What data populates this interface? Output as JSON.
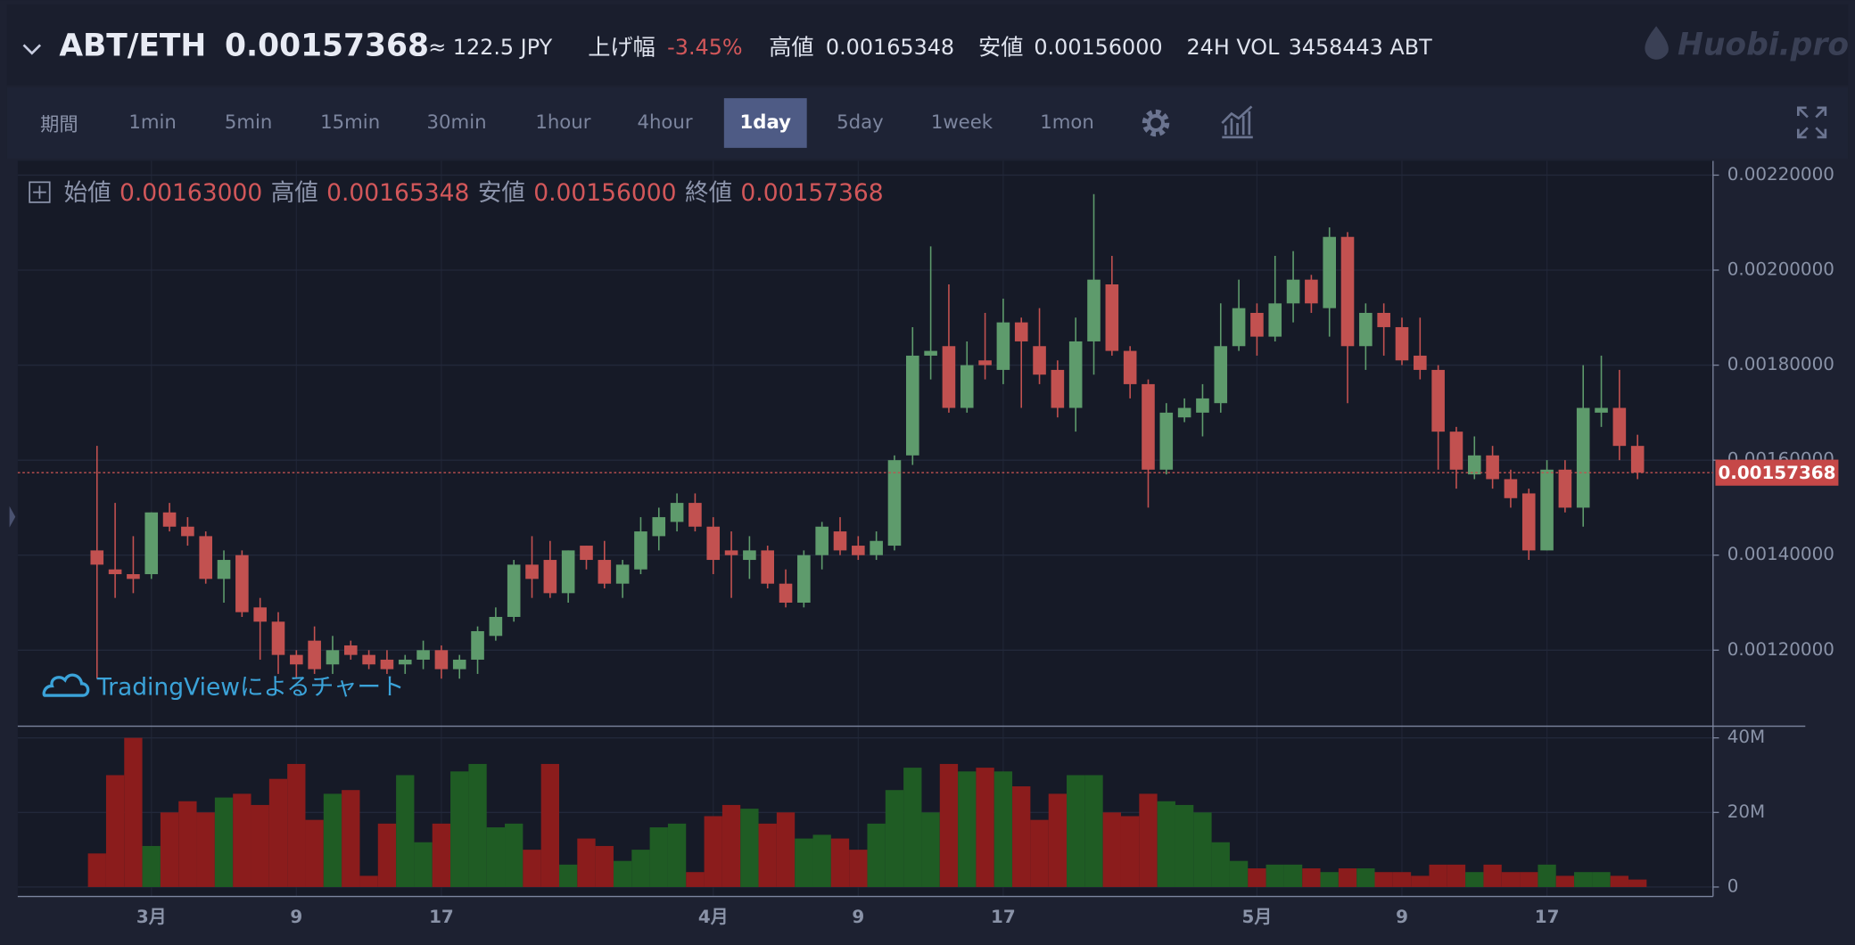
{
  "header": {
    "pair": "ABT/ETH",
    "price": "0.00157368",
    "jpy": "≈ 122.5 JPY",
    "change_label": "上げ幅",
    "change": "-3.45%",
    "high_label": "高値",
    "high": "0.00165348",
    "low_label": "安値",
    "low": "0.00156000",
    "vol_label": "24H VOL",
    "vol": "3458443 ABT",
    "logo": "Huobi.pro"
  },
  "toolbar": {
    "period_label": "期間",
    "intervals": [
      "1min",
      "5min",
      "15min",
      "30min",
      "1hour",
      "4hour",
      "1day",
      "5day",
      "1week",
      "1mon"
    ],
    "active": 6
  },
  "legend": {
    "open_label": "始値",
    "open": "0.00163000",
    "high_label": "高値",
    "high": "0.00165348",
    "low_label": "安値",
    "low": "0.00156000",
    "close_label": "終値",
    "close": "0.00157368"
  },
  "watermark": "TradingViewによるチャート",
  "chart_data": {
    "type": "candlestick",
    "categories": [
      null,
      null,
      null,
      "3月",
      null,
      null,
      null,
      null,
      null,
      null,
      null,
      "9",
      null,
      null,
      null,
      null,
      null,
      null,
      null,
      "17",
      null,
      null,
      null,
      null,
      null,
      null,
      null,
      null,
      null,
      null,
      null,
      null,
      null,
      null,
      "4月",
      null,
      null,
      null,
      null,
      null,
      null,
      null,
      "9",
      null,
      null,
      null,
      null,
      null,
      null,
      null,
      "17",
      null,
      null,
      null,
      null,
      null,
      null,
      null,
      null,
      null,
      null,
      null,
      null,
      null,
      "5月",
      null,
      null,
      null,
      null,
      null,
      null,
      null,
      "9",
      null,
      null,
      null,
      null,
      null,
      null,
      null,
      "17",
      null,
      null,
      null,
      null,
      null
    ],
    "open": [
      0.00141,
      0.00137,
      0.00136,
      0.00136,
      0.00149,
      0.00146,
      0.00144,
      0.00135,
      0.0014,
      0.00129,
      0.00126,
      0.00119,
      0.00122,
      0.00117,
      0.00121,
      0.00119,
      0.00118,
      0.00117,
      0.00118,
      0.0012,
      0.00116,
      0.00118,
      0.00123,
      0.00127,
      0.00138,
      0.00139,
      0.00132,
      0.00142,
      0.00139,
      0.00134,
      0.00137,
      0.00144,
      0.00147,
      0.00151,
      0.00146,
      0.00141,
      0.00139,
      0.00141,
      0.00134,
      0.0013,
      0.0014,
      0.00145,
      0.00142,
      0.0014,
      0.00142,
      0.00161,
      0.00182,
      0.00184,
      0.00171,
      0.00181,
      0.00179,
      0.00189,
      0.00184,
      0.00179,
      0.00171,
      0.00185,
      0.00197,
      0.00183,
      0.00176,
      0.00158,
      0.00169,
      0.0017,
      0.00172,
      0.00184,
      0.00191,
      0.00186,
      0.00193,
      0.00198,
      0.00192,
      0.00207,
      0.00184,
      0.00191,
      0.00188,
      0.00182,
      0.00179,
      0.00166,
      0.00157,
      0.00161,
      0.00156,
      0.00153,
      0.00141,
      0.00158,
      0.0015,
      0.0017,
      0.00171,
      0.00163
    ],
    "high": [
      0.00163,
      0.00151,
      0.00144,
      0.00149,
      0.00151,
      0.00148,
      0.00145,
      0.00141,
      0.00141,
      0.00131,
      0.00128,
      0.0012,
      0.00125,
      0.00123,
      0.00122,
      0.0012,
      0.0012,
      0.00119,
      0.00122,
      0.00121,
      0.00119,
      0.00125,
      0.00129,
      0.00139,
      0.00144,
      0.00143,
      0.00141,
      0.00142,
      0.00143,
      0.00139,
      0.00148,
      0.0015,
      0.00153,
      0.00153,
      0.00148,
      0.00145,
      0.00144,
      0.00142,
      0.00137,
      0.00141,
      0.00147,
      0.00148,
      0.00144,
      0.00145,
      0.00161,
      0.00188,
      0.00205,
      0.00197,
      0.00185,
      0.00191,
      0.00194,
      0.0019,
      0.00192,
      0.00181,
      0.0019,
      0.00216,
      0.00203,
      0.00184,
      0.00177,
      0.00172,
      0.00173,
      0.00176,
      0.00193,
      0.00198,
      0.00193,
      0.00203,
      0.00204,
      0.00199,
      0.00209,
      0.00208,
      0.00193,
      0.00193,
      0.0019,
      0.0019,
      0.0018,
      0.00167,
      0.00165,
      0.00163,
      0.00158,
      0.00154,
      0.0016,
      0.0016,
      0.0018,
      0.00182,
      0.00179,
      0.00165348
    ],
    "low": [
      0.00114,
      0.00131,
      0.00132,
      0.00135,
      0.00145,
      0.00142,
      0.00134,
      0.0013,
      0.00127,
      0.00118,
      0.00115,
      0.00114,
      0.00115,
      0.00115,
      0.00118,
      0.00116,
      0.00115,
      0.00115,
      0.00116,
      0.00114,
      0.00114,
      0.00115,
      0.00122,
      0.00126,
      0.00131,
      0.00131,
      0.0013,
      0.00137,
      0.00133,
      0.00131,
      0.00136,
      0.00141,
      0.00145,
      0.00145,
      0.00136,
      0.00131,
      0.00135,
      0.00133,
      0.00129,
      0.00129,
      0.00137,
      0.0014,
      0.00139,
      0.00139,
      0.00141,
      0.00159,
      0.00177,
      0.0017,
      0.0017,
      0.00177,
      0.00176,
      0.00171,
      0.00176,
      0.00169,
      0.00166,
      0.00178,
      0.00182,
      0.00173,
      0.0015,
      0.00157,
      0.00168,
      0.00165,
      0.0017,
      0.00183,
      0.00182,
      0.00185,
      0.00189,
      0.00191,
      0.00186,
      0.00172,
      0.00179,
      0.00182,
      0.0018,
      0.00177,
      0.00158,
      0.00154,
      0.00156,
      0.00154,
      0.0015,
      0.00139,
      0.00141,
      0.00149,
      0.00146,
      0.00167,
      0.0016,
      0.00156
    ],
    "close": [
      0.00138,
      0.00136,
      0.00135,
      0.00149,
      0.00146,
      0.00144,
      0.00135,
      0.00139,
      0.00128,
      0.00126,
      0.00119,
      0.00117,
      0.00116,
      0.0012,
      0.00119,
      0.00117,
      0.00116,
      0.00118,
      0.0012,
      0.00116,
      0.00118,
      0.00124,
      0.00127,
      0.00138,
      0.00135,
      0.00132,
      0.00141,
      0.00139,
      0.00134,
      0.00138,
      0.00145,
      0.00148,
      0.00151,
      0.00146,
      0.00139,
      0.0014,
      0.00141,
      0.00134,
      0.0013,
      0.0014,
      0.00146,
      0.00141,
      0.0014,
      0.00143,
      0.0016,
      0.00182,
      0.00183,
      0.00171,
      0.0018,
      0.0018,
      0.00189,
      0.00185,
      0.00178,
      0.00171,
      0.00185,
      0.00198,
      0.00183,
      0.00176,
      0.00158,
      0.0017,
      0.00171,
      0.00173,
      0.00184,
      0.00192,
      0.00186,
      0.00193,
      0.00198,
      0.00193,
      0.00207,
      0.00184,
      0.00191,
      0.00188,
      0.00181,
      0.00179,
      0.00166,
      0.00158,
      0.00161,
      0.00156,
      0.00152,
      0.00141,
      0.00158,
      0.0015,
      0.00171,
      0.00171,
      0.00163,
      0.00157368
    ],
    "volume": [
      9000000,
      30000000,
      40000000,
      11000000,
      20000000,
      23000000,
      20000000,
      24000000,
      25000000,
      22000000,
      29000000,
      33000000,
      18000000,
      25000000,
      26000000,
      3000000,
      17000000,
      30000000,
      12000000,
      17000000,
      31000000,
      33000000,
      16000000,
      17000000,
      10000000,
      33000000,
      6000000,
      13000000,
      11000000,
      7000000,
      10000000,
      16000000,
      17000000,
      4000000,
      19000000,
      22000000,
      21000000,
      17000000,
      20000000,
      13000000,
      14000000,
      13000000,
      10000000,
      17000000,
      26000000,
      32000000,
      20000000,
      33000000,
      31000000,
      32000000,
      31000000,
      27000000,
      18000000,
      25000000,
      30000000,
      30000000,
      20000000,
      19000000,
      25000000,
      23000000,
      22000000,
      20000000,
      12000000,
      7000000,
      5000000,
      6000000,
      6000000,
      5000000,
      4000000,
      5000000,
      5000000,
      4000000,
      4000000,
      3000000,
      6000000,
      6000000,
      4000000,
      6000000,
      4000000,
      4000000,
      6000000,
      3000000,
      4000000,
      4000000,
      3000000,
      2000000
    ],
    "up_color": "#5e9b6c",
    "down_color": "#c25150",
    "volume_up_color": "#1f5c24",
    "volume_down_color": "#8b1c1c",
    "ylim": [
      0.00104,
      0.00223
    ],
    "yticks": [
      {
        "value": 0.0012,
        "label": "0.00120000"
      },
      {
        "value": 0.0014,
        "label": "0.00140000"
      },
      {
        "value": 0.0016,
        "label": "0.00160000"
      },
      {
        "value": 0.0018,
        "label": "0.00180000"
      },
      {
        "value": 0.002,
        "label": "0.00200000"
      },
      {
        "value": 0.0022,
        "label": "0.00220000"
      }
    ],
    "volume_ylim": [
      0,
      42500000
    ],
    "volume_yticks": [
      0,
      {
        "value": 20000000,
        "label": "20M"
      },
      {
        "value": 40000000,
        "label": "40M"
      }
    ],
    "last_price_label": "0.00157368",
    "grid": true
  }
}
